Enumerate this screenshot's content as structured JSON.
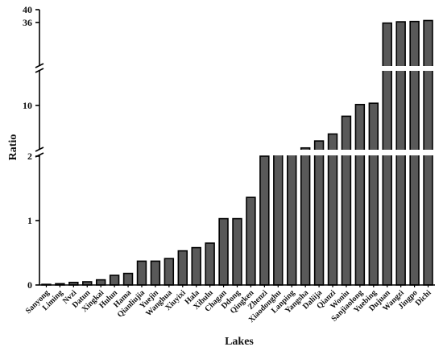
{
  "chart_data": {
    "type": "bar",
    "title": "",
    "xlabel": "Lakes",
    "ylabel": "Ratio",
    "axis_scale": "broken",
    "y_segments": [
      {
        "range": [
          0,
          2
        ],
        "ticks": [
          "0",
          "1",
          "2"
        ]
      },
      {
        "range": [
          2,
          10
        ],
        "ticks": [
          "10"
        ]
      },
      {
        "range": [
          10,
          40
        ],
        "ticks": [
          "36",
          "40"
        ]
      }
    ],
    "categories": [
      "Sanyong",
      "Liming",
      "Nvzi",
      "Datun",
      "Xingkai",
      "Hulun",
      "Hama",
      "Qianliujia",
      "Yuejin",
      "Wanghua",
      "Xiuyixi",
      "Hala",
      "Xibulu",
      "Chagan",
      "Ddong",
      "Qingken",
      "Zhenzi",
      "Xiaodonghu",
      "Lanping",
      "Yangsha",
      "Daliija",
      "Qianzi",
      "Woniu",
      "Sanjiaolong",
      "Yuebing",
      "Dujuan",
      "Wangzi",
      "Jingpo",
      "Dichi"
    ],
    "values": [
      0.01,
      0.02,
      0.04,
      0.05,
      0.08,
      0.15,
      0.18,
      0.37,
      0.37,
      0.41,
      0.53,
      0.58,
      0.65,
      1.03,
      1.03,
      1.36,
      2.0,
      2.4,
      2.6,
      3.3,
      4.4,
      5.5,
      8.3,
      10.3,
      10.7,
      35.8,
      36.2,
      36.3,
      36.6
    ],
    "bar_color": "#595959",
    "grid": false,
    "legend": "none"
  }
}
